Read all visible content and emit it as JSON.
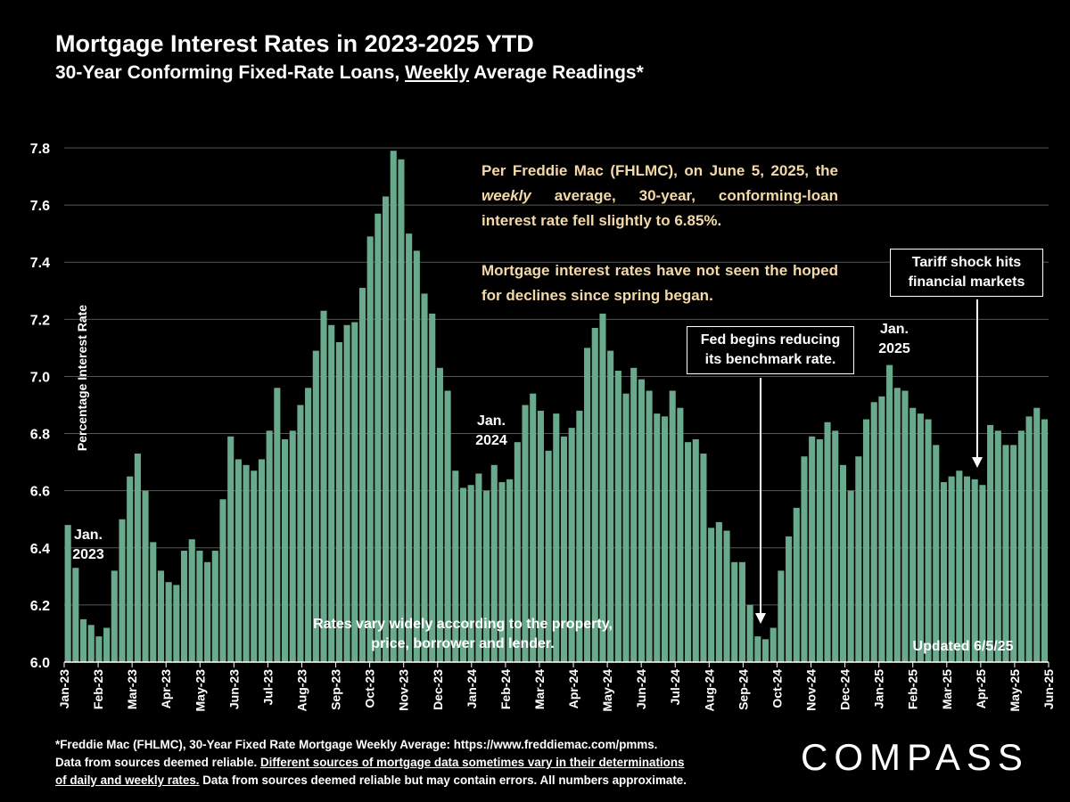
{
  "title": "Mortgage Interest Rates in 2023-2025 YTD",
  "subtitle": {
    "before": "30-Year Conforming Fixed-Rate Loans, ",
    "underlined": "Weekly",
    "after": " Average Readings*"
  },
  "colors": {
    "bar": "#6aaa8c",
    "background": "#000000",
    "note_text": "#f3d9a8",
    "grid": "#555555"
  },
  "notes": {
    "main_line1_a": "Per Freddie Mac (FHLMC), on June 5, 2025, the ",
    "main_line1_em": "weekly",
    "main_line1_b": " average, 30-year, conforming-loan interest rate fell slightly to 6.85%.",
    "main_line2": "Mortgage interest rates have not seen the hoped for declines since spring began.",
    "fed": "Fed begins reducing its benchmark rate.",
    "tariff": "Tariff shock hits financial markets",
    "variation": "Rates vary widely according to the property, price, borrower and lender.",
    "updated": "Updated 6/5/25"
  },
  "year_labels": {
    "y2023": "Jan. 2023",
    "y2024": "Jan. 2024",
    "y2025": "Jan. 2025"
  },
  "footnote": {
    "line1": "*Freddie Mac (FHLMC), 30-Year Fixed Rate Mortgage Weekly Average:  https://www.freddiemac.com/pmms.",
    "line2_a": "Data from sources deemed reliable. ",
    "line2_u": "Different sources of mortgage data sometimes vary in their determinations",
    "line3_u": "of daily and weekly rates.",
    "line3_b": " Data from sources deemed reliable but may contain errors. All numbers approximate."
  },
  "logo": "COMPASS",
  "chart_data": {
    "type": "bar",
    "title": "Mortgage Interest Rates in 2023-2025 YTD",
    "ylabel": "Percentage Interest  Rate",
    "ylim": [
      6.0,
      7.8
    ],
    "yticks": [
      6.0,
      6.2,
      6.4,
      6.6,
      6.8,
      7.0,
      7.2,
      7.4,
      7.6,
      7.8
    ],
    "grid": true,
    "x_ticks": [
      "Jan-23",
      "Feb-23",
      "Mar-23",
      "Apr-23",
      "May-23",
      "Jun-23",
      "Jul-23",
      "Aug-23",
      "Sep-23",
      "Oct-23",
      "Nov-23",
      "Dec-23",
      "Jan-24",
      "Feb-24",
      "Mar-24",
      "Apr-24",
      "May-24",
      "Jun-24",
      "Jul-24",
      "Aug-24",
      "Sep-24",
      "Oct-24",
      "Nov-24",
      "Dec-24",
      "Jan-25",
      "Feb-25",
      "Mar-25",
      "Apr-25",
      "May-25",
      "Jun-25"
    ],
    "values": [
      6.48,
      6.33,
      6.15,
      6.13,
      6.09,
      6.12,
      6.32,
      6.5,
      6.65,
      6.73,
      6.6,
      6.42,
      6.32,
      6.28,
      6.27,
      6.39,
      6.43,
      6.39,
      6.35,
      6.39,
      6.57,
      6.79,
      6.71,
      6.69,
      6.67,
      6.71,
      6.81,
      6.96,
      6.78,
      6.81,
      6.9,
      6.96,
      7.09,
      7.23,
      7.18,
      7.12,
      7.18,
      7.19,
      7.31,
      7.49,
      7.57,
      7.63,
      7.79,
      7.76,
      7.5,
      7.44,
      7.29,
      7.22,
      7.03,
      6.95,
      6.67,
      6.61,
      6.62,
      6.66,
      6.6,
      6.69,
      6.63,
      6.64,
      6.77,
      6.9,
      6.94,
      6.88,
      6.74,
      6.87,
      6.79,
      6.82,
      6.88,
      7.1,
      7.17,
      7.22,
      7.09,
      7.02,
      6.94,
      7.03,
      6.99,
      6.95,
      6.87,
      6.86,
      6.95,
      6.89,
      6.77,
      6.78,
      6.73,
      6.47,
      6.49,
      6.46,
      6.35,
      6.35,
      6.2,
      6.09,
      6.08,
      6.12,
      6.32,
      6.44,
      6.54,
      6.72,
      6.79,
      6.78,
      6.84,
      6.81,
      6.69,
      6.6,
      6.72,
      6.85,
      6.91,
      6.93,
      7.04,
      6.96,
      6.95,
      6.89,
      6.87,
      6.85,
      6.76,
      6.63,
      6.65,
      6.67,
      6.65,
      6.64,
      6.62,
      6.83,
      6.81,
      6.76,
      6.76,
      6.81,
      6.86,
      6.89,
      6.85
    ]
  }
}
